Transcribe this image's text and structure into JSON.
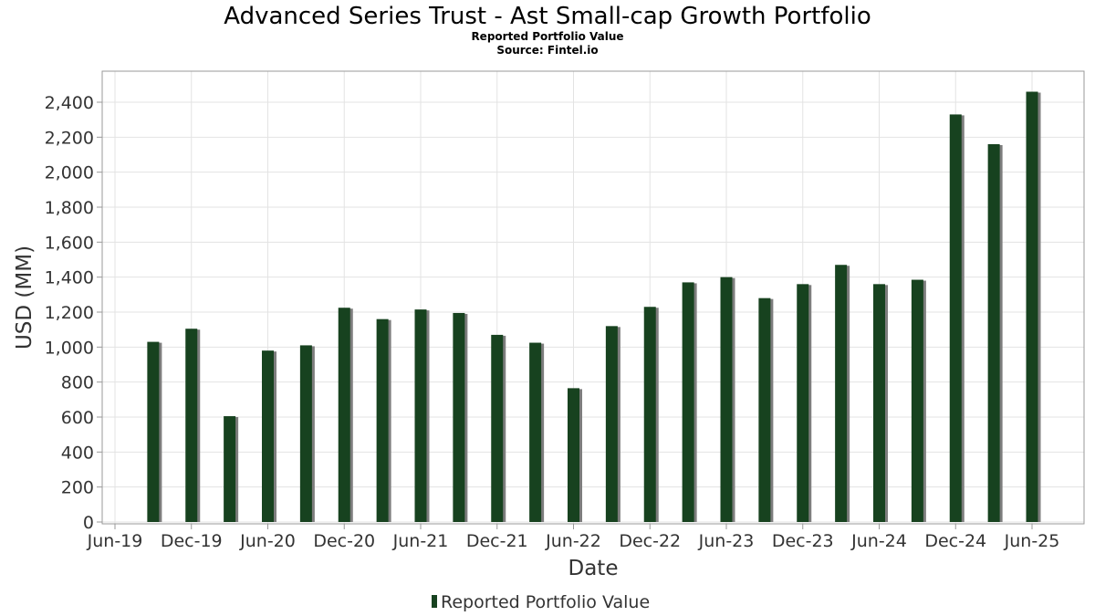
{
  "chart_data": {
    "type": "bar",
    "title": "Advanced Series Trust - Ast Small-cap Growth Portfolio",
    "subtitle": "Reported Portfolio Value",
    "source": "Source: Fintel.io",
    "xlabel": "Date",
    "ylabel": "USD (MM)",
    "ylim": [
      0,
      2600
    ],
    "yticks": [
      0,
      200,
      400,
      600,
      800,
      1000,
      1200,
      1400,
      1600,
      1800,
      2000,
      2200,
      2400
    ],
    "ytick_labels": [
      "0",
      "200",
      "400",
      "600",
      "800",
      "1,000",
      "1,200",
      "1,400",
      "1,600",
      "1,800",
      "2,000",
      "2,200",
      "2,400"
    ],
    "xtick_labels": [
      "Jun-19",
      "Dec-19",
      "Jun-20",
      "Dec-20",
      "Jun-21",
      "Dec-21",
      "Jun-22",
      "Dec-22",
      "Jun-23",
      "Dec-23",
      "Jun-24",
      "Dec-24",
      "Jun-25"
    ],
    "categories": [
      "Sep-19",
      "Dec-19",
      "Mar-20",
      "Jun-20",
      "Sep-20",
      "Dec-20",
      "Mar-21",
      "Jun-21",
      "Sep-21",
      "Dec-21",
      "Mar-22",
      "Jun-22",
      "Sep-22",
      "Dec-22",
      "Mar-23",
      "Jun-23",
      "Sep-23",
      "Dec-23",
      "Mar-24",
      "Jun-24",
      "Sep-24",
      "Dec-24",
      "Mar-25",
      "Jun-25"
    ],
    "series": [
      {
        "name": "Reported Portfolio Value",
        "values": [
          1030,
          1105,
          605,
          980,
          1010,
          1225,
          1160,
          1215,
          1195,
          1070,
          1025,
          765,
          1120,
          1230,
          1370,
          1400,
          1280,
          1360,
          1470,
          1360,
          1385,
          2330,
          2160,
          2460
        ]
      }
    ],
    "legend": "bottom-center",
    "grid": true,
    "colors": {
      "bar": "#17421f",
      "shadow": "#7d7d7d"
    }
  }
}
